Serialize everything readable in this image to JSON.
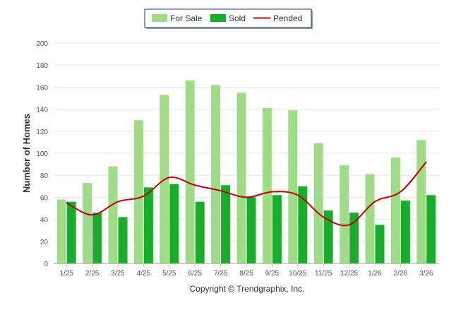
{
  "chart_data": {
    "type": "bar",
    "title": "",
    "xlabel": "",
    "ylabel": "Number of Homes",
    "ylim": [
      0,
      200
    ],
    "yticks": [
      0,
      20,
      40,
      60,
      80,
      100,
      120,
      140,
      160,
      180,
      200
    ],
    "grid": true,
    "legend_position": "top-center",
    "categories": [
      "1/25",
      "2/25",
      "3/25",
      "4/25",
      "5/25",
      "6/25",
      "7/25",
      "8/25",
      "9/25",
      "10/25",
      "11/25",
      "12/25",
      "1/26",
      "2/26",
      "3/26"
    ],
    "series": [
      {
        "name": "For Sale",
        "kind": "bar",
        "color": "#a0dc88",
        "values": [
          58,
          73,
          88,
          130,
          153,
          166,
          162,
          155,
          141,
          139,
          109,
          89,
          81,
          96,
          112
        ]
      },
      {
        "name": "Sold",
        "kind": "bar",
        "color": "#1aad2c",
        "values": [
          56,
          46,
          42,
          69,
          72,
          56,
          71,
          60,
          62,
          70,
          48,
          46,
          35,
          57,
          62
        ]
      },
      {
        "name": "Pended",
        "kind": "line",
        "color": "#c00000",
        "values": [
          55,
          44,
          56,
          61,
          78,
          71,
          66,
          60,
          65,
          62,
          42,
          35,
          56,
          65,
          92
        ]
      }
    ],
    "footer": "Copyright © Trendgraphix, Inc."
  }
}
